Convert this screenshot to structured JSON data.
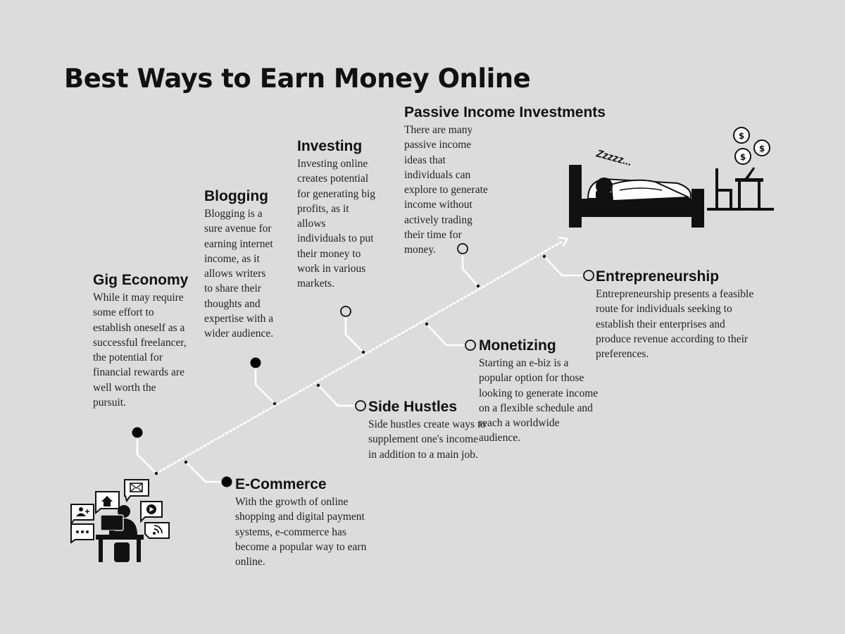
{
  "title": "Best Ways to Earn Money Online",
  "sleep_text": "Zzzzz...",
  "items": {
    "gig": {
      "heading": "Gig Economy",
      "text": "While it may require some effort to establish oneself as a successful freelancer, the potential for financial rewards are well worth the pursuit."
    },
    "blogging": {
      "heading": "Blogging",
      "text": "Blogging is a sure avenue for earning internet income, as it allows writers to share their thoughts and expertise with a wider audience."
    },
    "investing": {
      "heading": "Investing",
      "text": "Investing online creates potential for generating big profits, as it allows individuals to put their money to work in various markets."
    },
    "passive": {
      "heading": "Passive Income Investments",
      "text": "There are many passive income ideas that individuals can explore to generate income without actively trading their time for money."
    },
    "ecommerce": {
      "heading": "E-Commerce",
      "text": "With the growth of online shopping and digital payment systems, e-commerce has become a popular way to earn online."
    },
    "side": {
      "heading": "Side Hustles",
      "text": "Side hustles create ways to supplement one's income in addition to a main job."
    },
    "monetizing": {
      "heading": "Monetizing",
      "text": "Starting an e-biz is a popular option for those looking to generate income on a flexible schedule and reach a worldwide audience."
    },
    "entrepreneurship": {
      "heading": "Entrepreneurship",
      "text": "Entrepreneurship presents a feasible route for individuals seeking to establish their enterprises and produce revenue according to their preferences."
    }
  },
  "icons": [
    "person-at-computer-icon",
    "chat-user-icon",
    "home-icon",
    "mail-icon",
    "play-icon",
    "rss-icon",
    "more-icon",
    "bed-sleeping-icon",
    "desk-icon",
    "dollar-bubble-icon"
  ]
}
